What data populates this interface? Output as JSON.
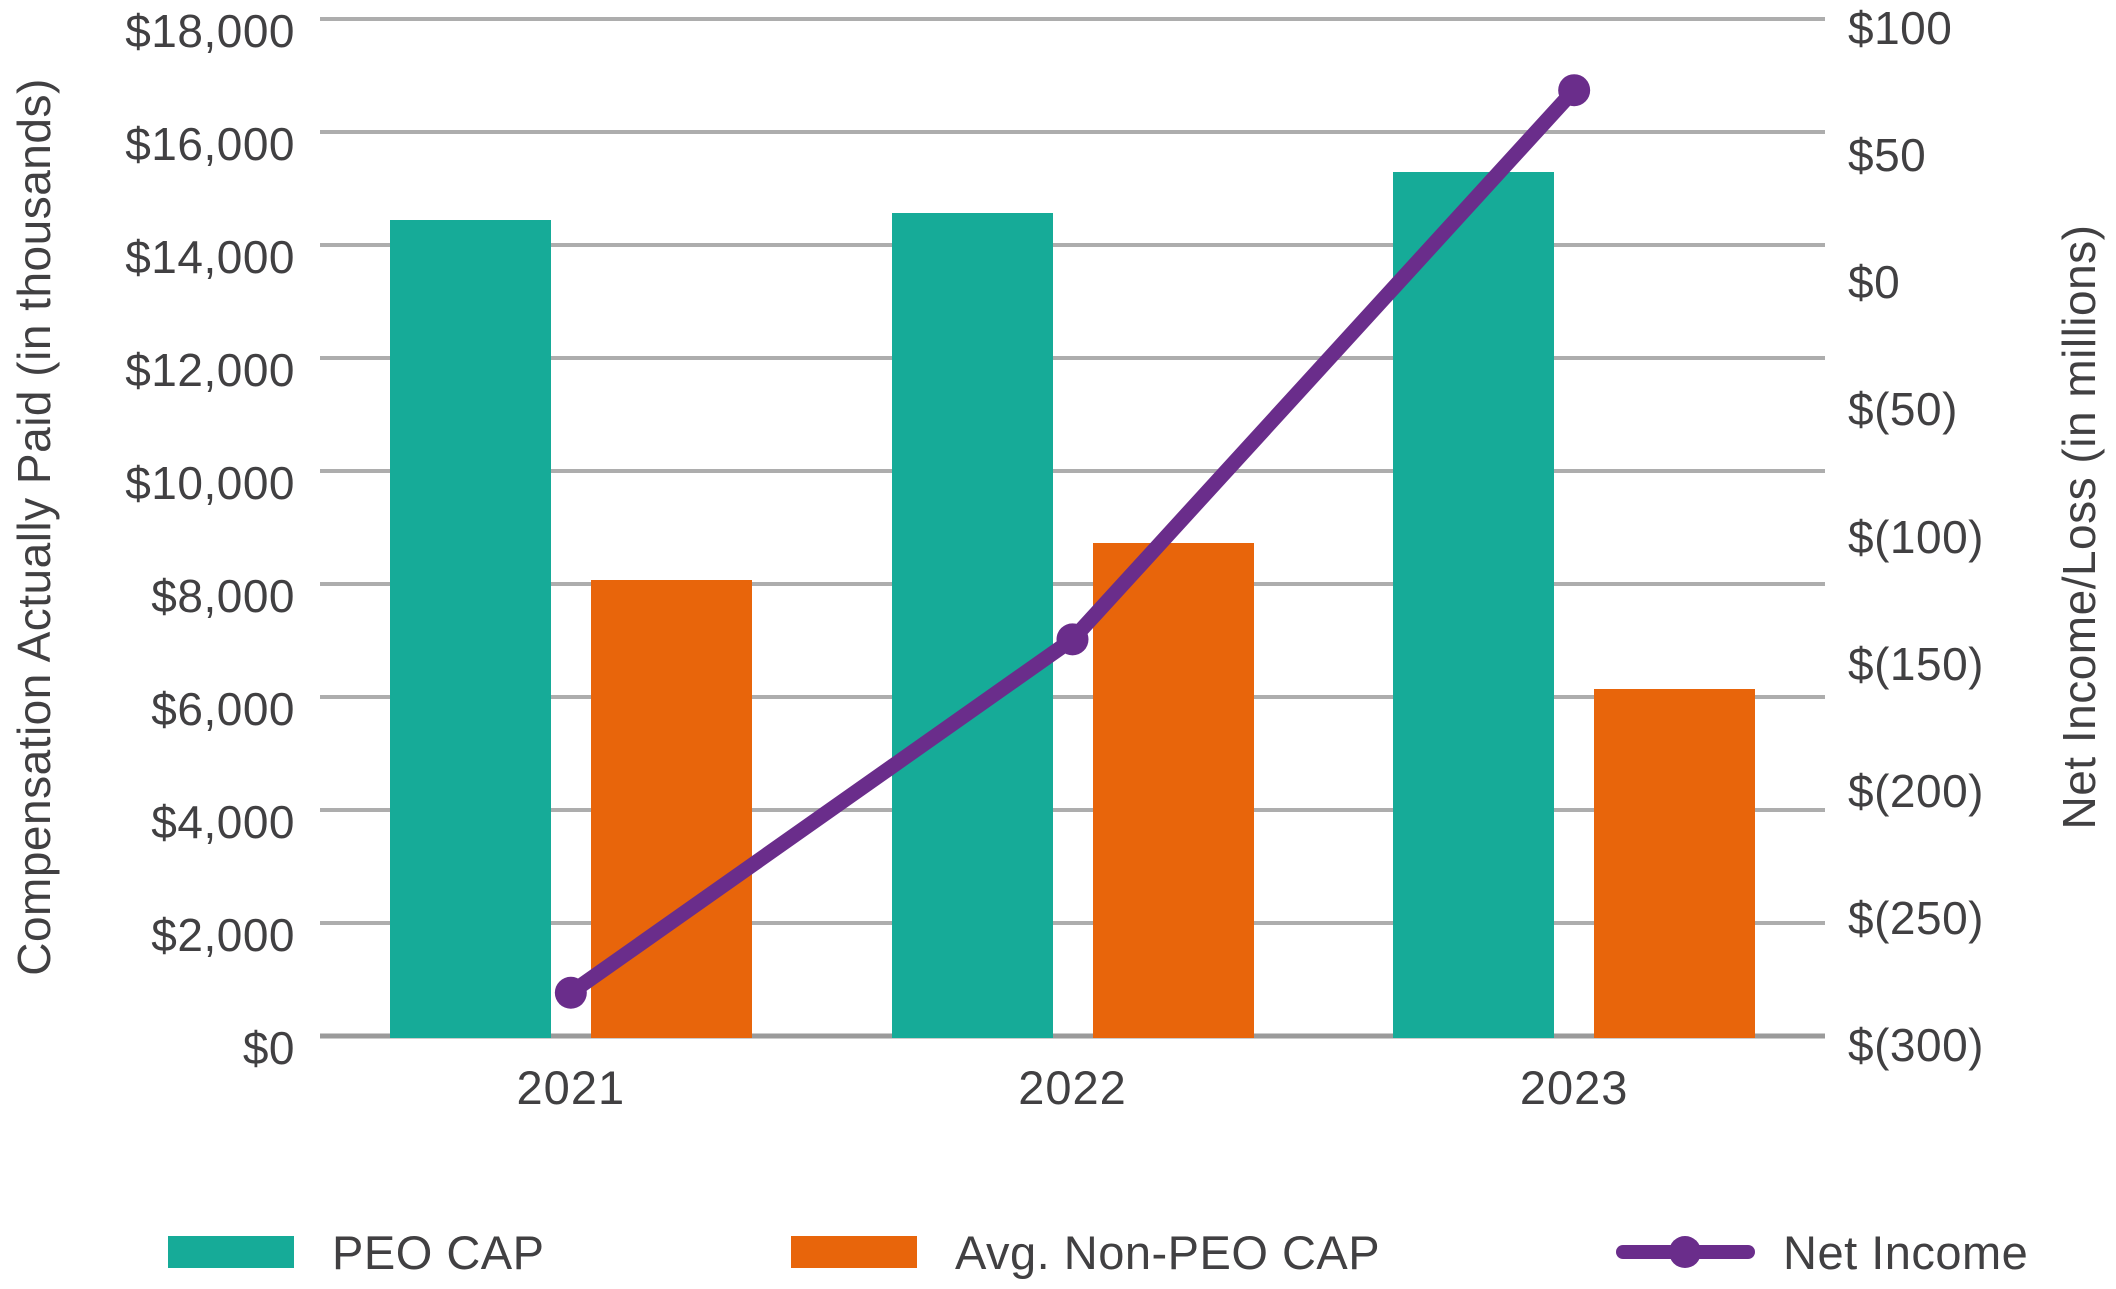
{
  "chart_data": {
    "type": "bar+line combo, dual axis",
    "categories": [
      "2021",
      "2022",
      "2023"
    ],
    "series": [
      {
        "name": "PEO CAP",
        "type": "bar",
        "axis": "left",
        "color": "#16ab98",
        "values": [
          14450,
          14560,
          15290
        ]
      },
      {
        "name": "Avg. Non-PEO CAP",
        "type": "bar",
        "axis": "left",
        "color": "#e8650b",
        "values": [
          8070,
          8730,
          6140
        ]
      },
      {
        "name": "Net Income",
        "type": "line",
        "axis": "right",
        "color": "#6a2d8b",
        "values": [
          -283,
          -144,
          72
        ]
      }
    ],
    "left_axis": {
      "title": "Compensation Actually Paid (in thousands)",
      "min": 0,
      "max": 18000,
      "tick_step": 2000,
      "tick_labels": [
        "$18,000",
        "$16,000",
        "$14,000",
        "$12,000",
        "$10,000",
        "$8,000",
        "$6,000",
        "$4,000",
        "$2,000",
        "$0"
      ]
    },
    "right_axis": {
      "title": "Net Income/Loss (in millions)",
      "min": -300,
      "max": 100,
      "tick_step": 50,
      "tick_labels": [
        "$100",
        "$50",
        "$0",
        "$(50)",
        "$(100)",
        "$(150)",
        "$(200)",
        "$(250)",
        "$(300)"
      ]
    },
    "grid": "horizontal gridlines on, vertical off",
    "legend_position": "bottom"
  },
  "legend": {
    "peo_cap": "PEO CAP",
    "non_peo_cap": "Avg. Non-PEO CAP",
    "net_income": "Net Income"
  },
  "colors": {
    "teal": "#16ab98",
    "orange": "#e8650b",
    "purple": "#6a2d8b",
    "gridline": "#adadad",
    "axis_line": "#9a9a9a",
    "text": "#414042"
  }
}
